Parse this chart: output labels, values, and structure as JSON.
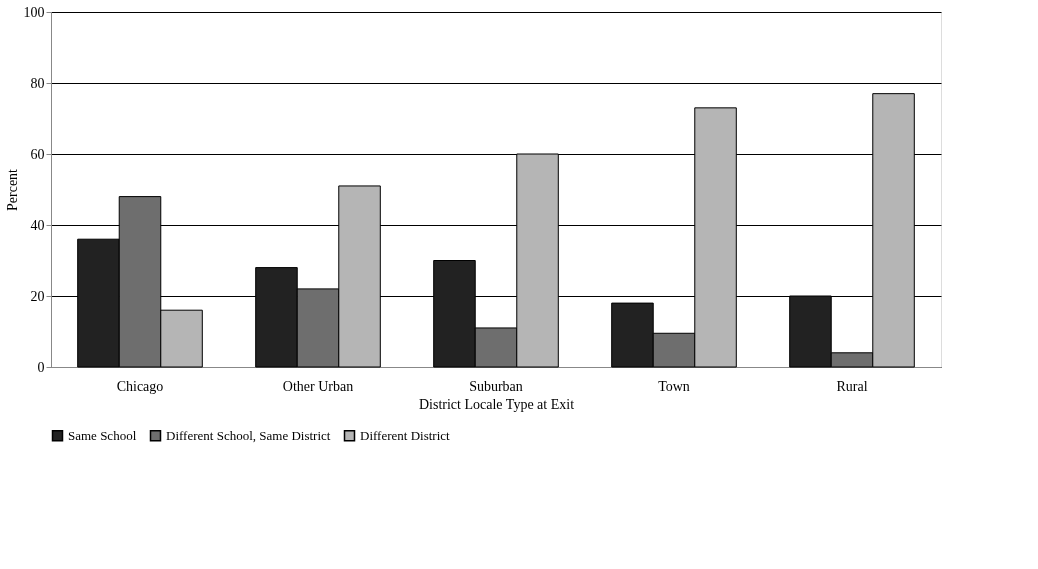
{
  "chart_data": {
    "type": "bar",
    "xlabel": "District Locale Type at Exit",
    "ylabel": "Percent",
    "categories": [
      "Chicago",
      "Other Urban",
      "Suburban",
      "Town",
      "Rural"
    ],
    "series": [
      {
        "name": "Same School",
        "color": "#222222",
        "values": [
          36,
          28,
          30,
          18,
          20
        ]
      },
      {
        "name": "Different School, Same District",
        "color": "#6e6e6e",
        "values": [
          48,
          22,
          11,
          9.5,
          4
        ]
      },
      {
        "name": "Different District",
        "color": "#b5b5b5",
        "values": [
          16,
          51,
          60,
          73,
          77
        ]
      }
    ],
    "ylim": [
      0,
      100
    ],
    "yticks": [
      0,
      20,
      40,
      60,
      80,
      100
    ],
    "grid": "y",
    "legend": "bottom"
  }
}
